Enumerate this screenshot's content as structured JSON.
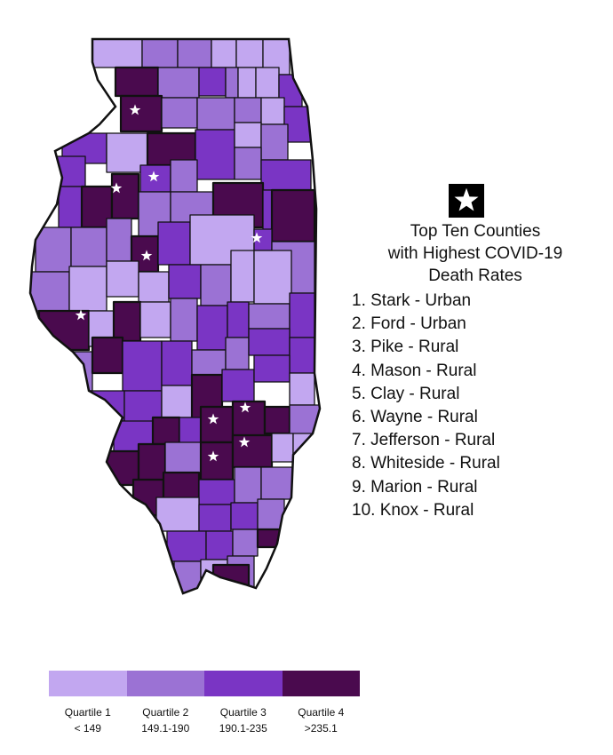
{
  "colors": {
    "q1": "#c2a7f0",
    "q2": "#9b72d4",
    "q3": "#7a35c4",
    "q4": "#4a0a4e",
    "border": "#111111"
  },
  "map": {
    "state": "Illinois",
    "marker_icon": "star-icon"
  },
  "key": {
    "icon": "star-icon",
    "title_lines": [
      "Top Ten Counties",
      "with Highest COVID-19",
      "Death Rates"
    ]
  },
  "rankings": [
    "1. Stark - Urban",
    "2. Ford - Urban",
    "3. Pike - Rural",
    "4. Mason - Rural",
    "5. Clay - Rural",
    "6. Wayne - Rural",
    "7. Jefferson - Rural",
    "8. Whiteside - Rural",
    "9. Marion - Rural",
    "10. Knox - Rural"
  ],
  "legend": [
    {
      "label": "Quartile 1",
      "range": "< 149",
      "color": "#c2a7f0"
    },
    {
      "label": "Quartile 2",
      "range": "149.1-190",
      "color": "#9b72d4"
    },
    {
      "label": "Quartile 3",
      "range": "190.1-235",
      "color": "#7a35c4"
    },
    {
      "label": "Quartile 4",
      "range": ">235.1",
      "color": "#4a0a4e"
    }
  ]
}
